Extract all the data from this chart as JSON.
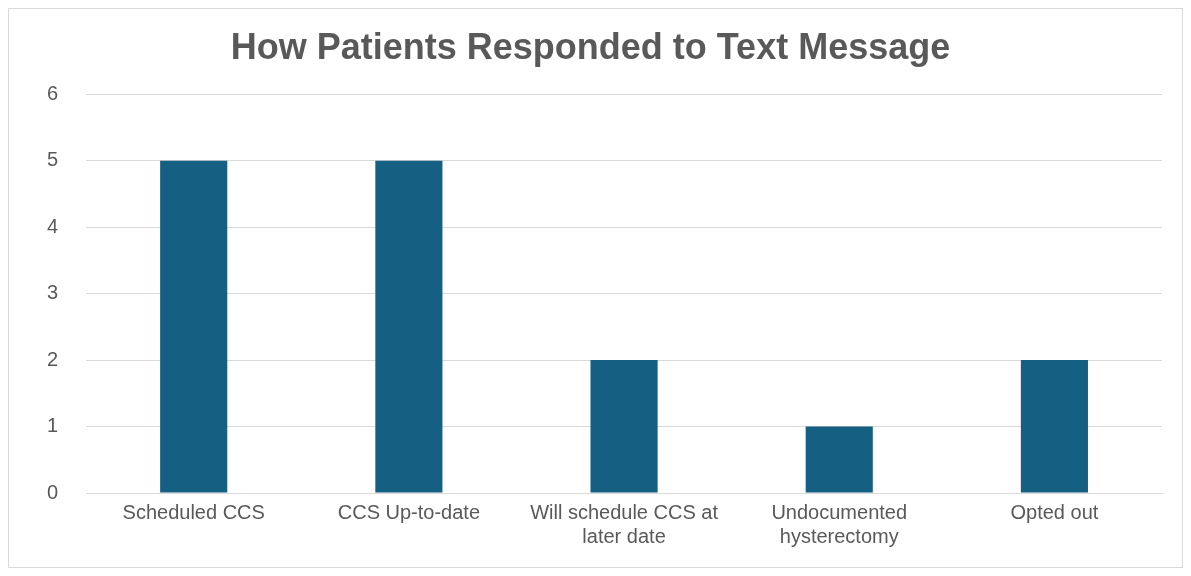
{
  "chart_data": {
    "type": "bar",
    "title": "How Patients Responded to Text Message",
    "categories": [
      "Scheduled CCS",
      "CCS Up-to-date",
      "Will schedule CCS at later date",
      "Undocumented hysterectomy",
      "Opted out"
    ],
    "values": [
      5,
      5,
      2,
      1,
      2
    ],
    "color": "#155f82",
    "ylim": [
      0,
      6
    ],
    "yticks": [
      0,
      1,
      2,
      3,
      4,
      5,
      6
    ],
    "grid": "y",
    "legend": false
  }
}
